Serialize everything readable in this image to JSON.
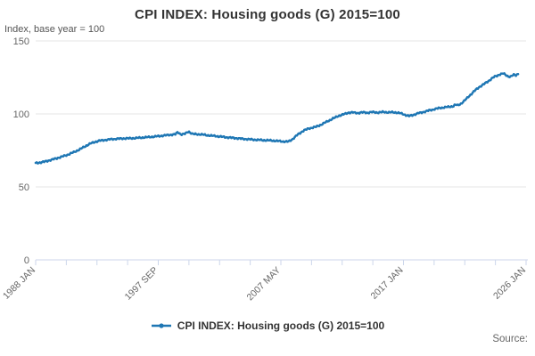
{
  "header": {
    "title": "CPI INDEX: Housing goods (G) 2015=100",
    "subtitle": "Index, base year = 100"
  },
  "legend": {
    "label": "CPI INDEX: Housing goods (G) 2015=100",
    "marker_icon": "line-with-dot"
  },
  "footer": {
    "source_label": "Source:"
  },
  "colors": {
    "series_line": "#1f77b4",
    "gridline": "#e6e6e6",
    "axis_line": "#ccd6eb",
    "tick": "#ccd6eb",
    "axis_label_text": "#666666",
    "title_text": "#333333"
  },
  "chart_data": {
    "type": "line",
    "title": "CPI INDEX: Housing goods (G) 2015=100",
    "subtitle": "Index, base year = 100",
    "grid": "horizontal",
    "legend_position": "bottom-center",
    "y_axis": {
      "ticks": [
        0,
        50,
        100,
        150
      ],
      "range": [
        0,
        150
      ]
    },
    "x_axis": {
      "unit": "month",
      "start": "1988 JAN",
      "end_label": "2026 JAN",
      "tick_count": 17,
      "labeled_tick_indexes": [
        0,
        4,
        8,
        12,
        16
      ],
      "tick_labels": [
        "1988 JAN",
        "1997 SEP",
        "2007 MAY",
        "2017 JAN",
        "2026 JAN"
      ],
      "label_rotation_deg": -45
    },
    "series": [
      {
        "name": "CPI INDEX: Housing goods (G) 2015=100",
        "color": "#1f77b4",
        "marker": "circle",
        "x_start_year": 1988.0,
        "x_end_year": 2026.0,
        "points": [
          [
            1988.0,
            66.3
          ],
          [
            1988.33,
            66.7
          ],
          [
            1988.67,
            67.2
          ],
          [
            1989.0,
            68.0
          ],
          [
            1989.5,
            69.2
          ],
          [
            1990.0,
            70.5
          ],
          [
            1990.5,
            72.0
          ],
          [
            1991.0,
            73.8
          ],
          [
            1991.5,
            75.8
          ],
          [
            1992.0,
            78.3
          ],
          [
            1992.33,
            79.8
          ],
          [
            1992.67,
            80.8
          ],
          [
            1993.0,
            81.6
          ],
          [
            1993.5,
            82.2
          ],
          [
            1994.0,
            82.7
          ],
          [
            1994.5,
            83.0
          ],
          [
            1995.0,
            83.2
          ],
          [
            1995.5,
            83.3
          ],
          [
            1996.0,
            83.5
          ],
          [
            1996.5,
            83.9
          ],
          [
            1997.0,
            84.2
          ],
          [
            1997.5,
            84.6
          ],
          [
            1998.0,
            85.1
          ],
          [
            1998.5,
            85.6
          ],
          [
            1999.0,
            86.0
          ],
          [
            1999.2,
            87.6
          ],
          [
            1999.45,
            85.9
          ],
          [
            1999.75,
            86.3
          ],
          [
            2000.05,
            88.0
          ],
          [
            2000.35,
            86.2
          ],
          [
            2000.7,
            86.1
          ],
          [
            2001.0,
            86.0
          ],
          [
            2001.5,
            85.4
          ],
          [
            2002.0,
            85.0
          ],
          [
            2002.5,
            84.5
          ],
          [
            2003.0,
            84.0
          ],
          [
            2003.5,
            83.6
          ],
          [
            2004.0,
            83.2
          ],
          [
            2004.5,
            82.8
          ],
          [
            2005.0,
            82.5
          ],
          [
            2005.5,
            82.2
          ],
          [
            2006.0,
            82.0
          ],
          [
            2006.5,
            81.8
          ],
          [
            2007.0,
            81.5
          ],
          [
            2007.5,
            81.1
          ],
          [
            2007.9,
            81.0
          ],
          [
            2008.2,
            82.5
          ],
          [
            2008.6,
            85.5
          ],
          [
            2009.1,
            88.6
          ],
          [
            2009.6,
            90.2
          ],
          [
            2010.1,
            91.2
          ],
          [
            2010.5,
            92.7
          ],
          [
            2011.0,
            95.0
          ],
          [
            2011.5,
            97.2
          ],
          [
            2011.9,
            98.8
          ],
          [
            2012.3,
            99.8
          ],
          [
            2012.6,
            100.8
          ],
          [
            2013.0,
            101.0
          ],
          [
            2013.4,
            100.6
          ],
          [
            2013.8,
            101.1
          ],
          [
            2014.2,
            100.8
          ],
          [
            2014.6,
            101.3
          ],
          [
            2015.0,
            100.9
          ],
          [
            2015.4,
            101.4
          ],
          [
            2015.8,
            101.0
          ],
          [
            2016.2,
            101.2
          ],
          [
            2016.6,
            100.7
          ],
          [
            2016.9,
            100.1
          ],
          [
            2017.15,
            99.2
          ],
          [
            2017.4,
            98.5
          ],
          [
            2017.65,
            99.1
          ],
          [
            2017.9,
            99.8
          ],
          [
            2018.2,
            100.6
          ],
          [
            2018.6,
            101.4
          ],
          [
            2019.0,
            102.4
          ],
          [
            2019.4,
            103.2
          ],
          [
            2019.8,
            104.0
          ],
          [
            2020.2,
            104.5
          ],
          [
            2020.6,
            104.9
          ],
          [
            2020.9,
            105.3
          ],
          [
            2021.05,
            106.3
          ],
          [
            2021.25,
            105.9
          ],
          [
            2021.5,
            107.0
          ],
          [
            2021.75,
            108.8
          ],
          [
            2022.0,
            111.0
          ],
          [
            2022.3,
            113.5
          ],
          [
            2022.6,
            116.0
          ],
          [
            2022.9,
            118.2
          ],
          [
            2023.2,
            119.8
          ],
          [
            2023.5,
            121.5
          ],
          [
            2023.8,
            123.4
          ],
          [
            2024.1,
            125.3
          ],
          [
            2024.4,
            126.4
          ],
          [
            2024.65,
            127.3
          ],
          [
            2024.85,
            127.7
          ],
          [
            2025.05,
            126.6
          ],
          [
            2025.25,
            125.7
          ],
          [
            2025.4,
            125.4
          ],
          [
            2025.55,
            126.3
          ],
          [
            2025.7,
            127.0
          ],
          [
            2025.85,
            126.4
          ],
          [
            2026.0,
            127.6
          ]
        ]
      }
    ]
  }
}
